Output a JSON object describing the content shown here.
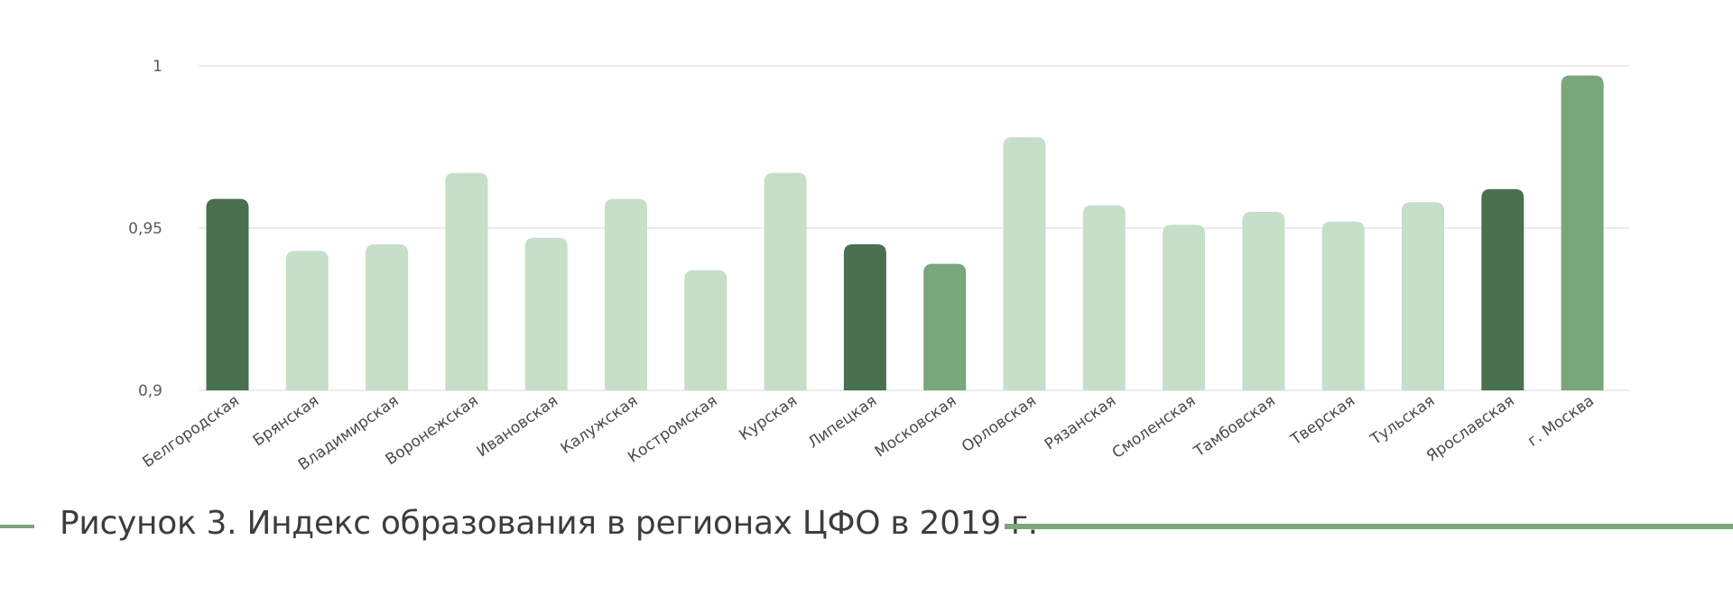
{
  "chart_data": {
    "type": "bar",
    "title": "",
    "xlabel": "",
    "ylabel": "",
    "ylim": [
      0.9,
      1.0
    ],
    "yticks": [
      "0,9",
      "0,95",
      "1"
    ],
    "ytick_values": [
      0.9,
      0.95,
      1.0
    ],
    "grid": true,
    "categories": [
      "Белгородская",
      "Брянская",
      "Владимирская",
      "Воронежская",
      "Ивановская",
      "Калужская",
      "Костромская",
      "Курская",
      "Липецкая",
      "Московская",
      "Орловская",
      "Рязанская",
      "Смоленская",
      "Тамбовская",
      "Тверская",
      "Тульская",
      "Ярославская",
      "г. Москва"
    ],
    "values": [
      0.959,
      0.943,
      0.945,
      0.967,
      0.947,
      0.959,
      0.937,
      0.967,
      0.945,
      0.939,
      0.978,
      0.957,
      0.951,
      0.955,
      0.952,
      0.958,
      0.962,
      0.997
    ],
    "bar_colors": [
      "#4a7050",
      "#c5dfc8",
      "#c5dfc8",
      "#c5dfc8",
      "#c5dfc8",
      "#c5dfc8",
      "#c5dfc8",
      "#c5dfc8",
      "#4a7050",
      "#7aa67c",
      "#c5dfc8",
      "#c5dfc8",
      "#c5dfc8",
      "#c5dfc8",
      "#c5dfc8",
      "#c5dfc8",
      "#4a7050",
      "#7aa67c"
    ],
    "gridline_color": "#e6e6e6"
  },
  "caption": {
    "text": "Рисунок 3. Индекс образования в регионах ЦФО в 2019 г.",
    "accent_color": "#7aa67c"
  }
}
